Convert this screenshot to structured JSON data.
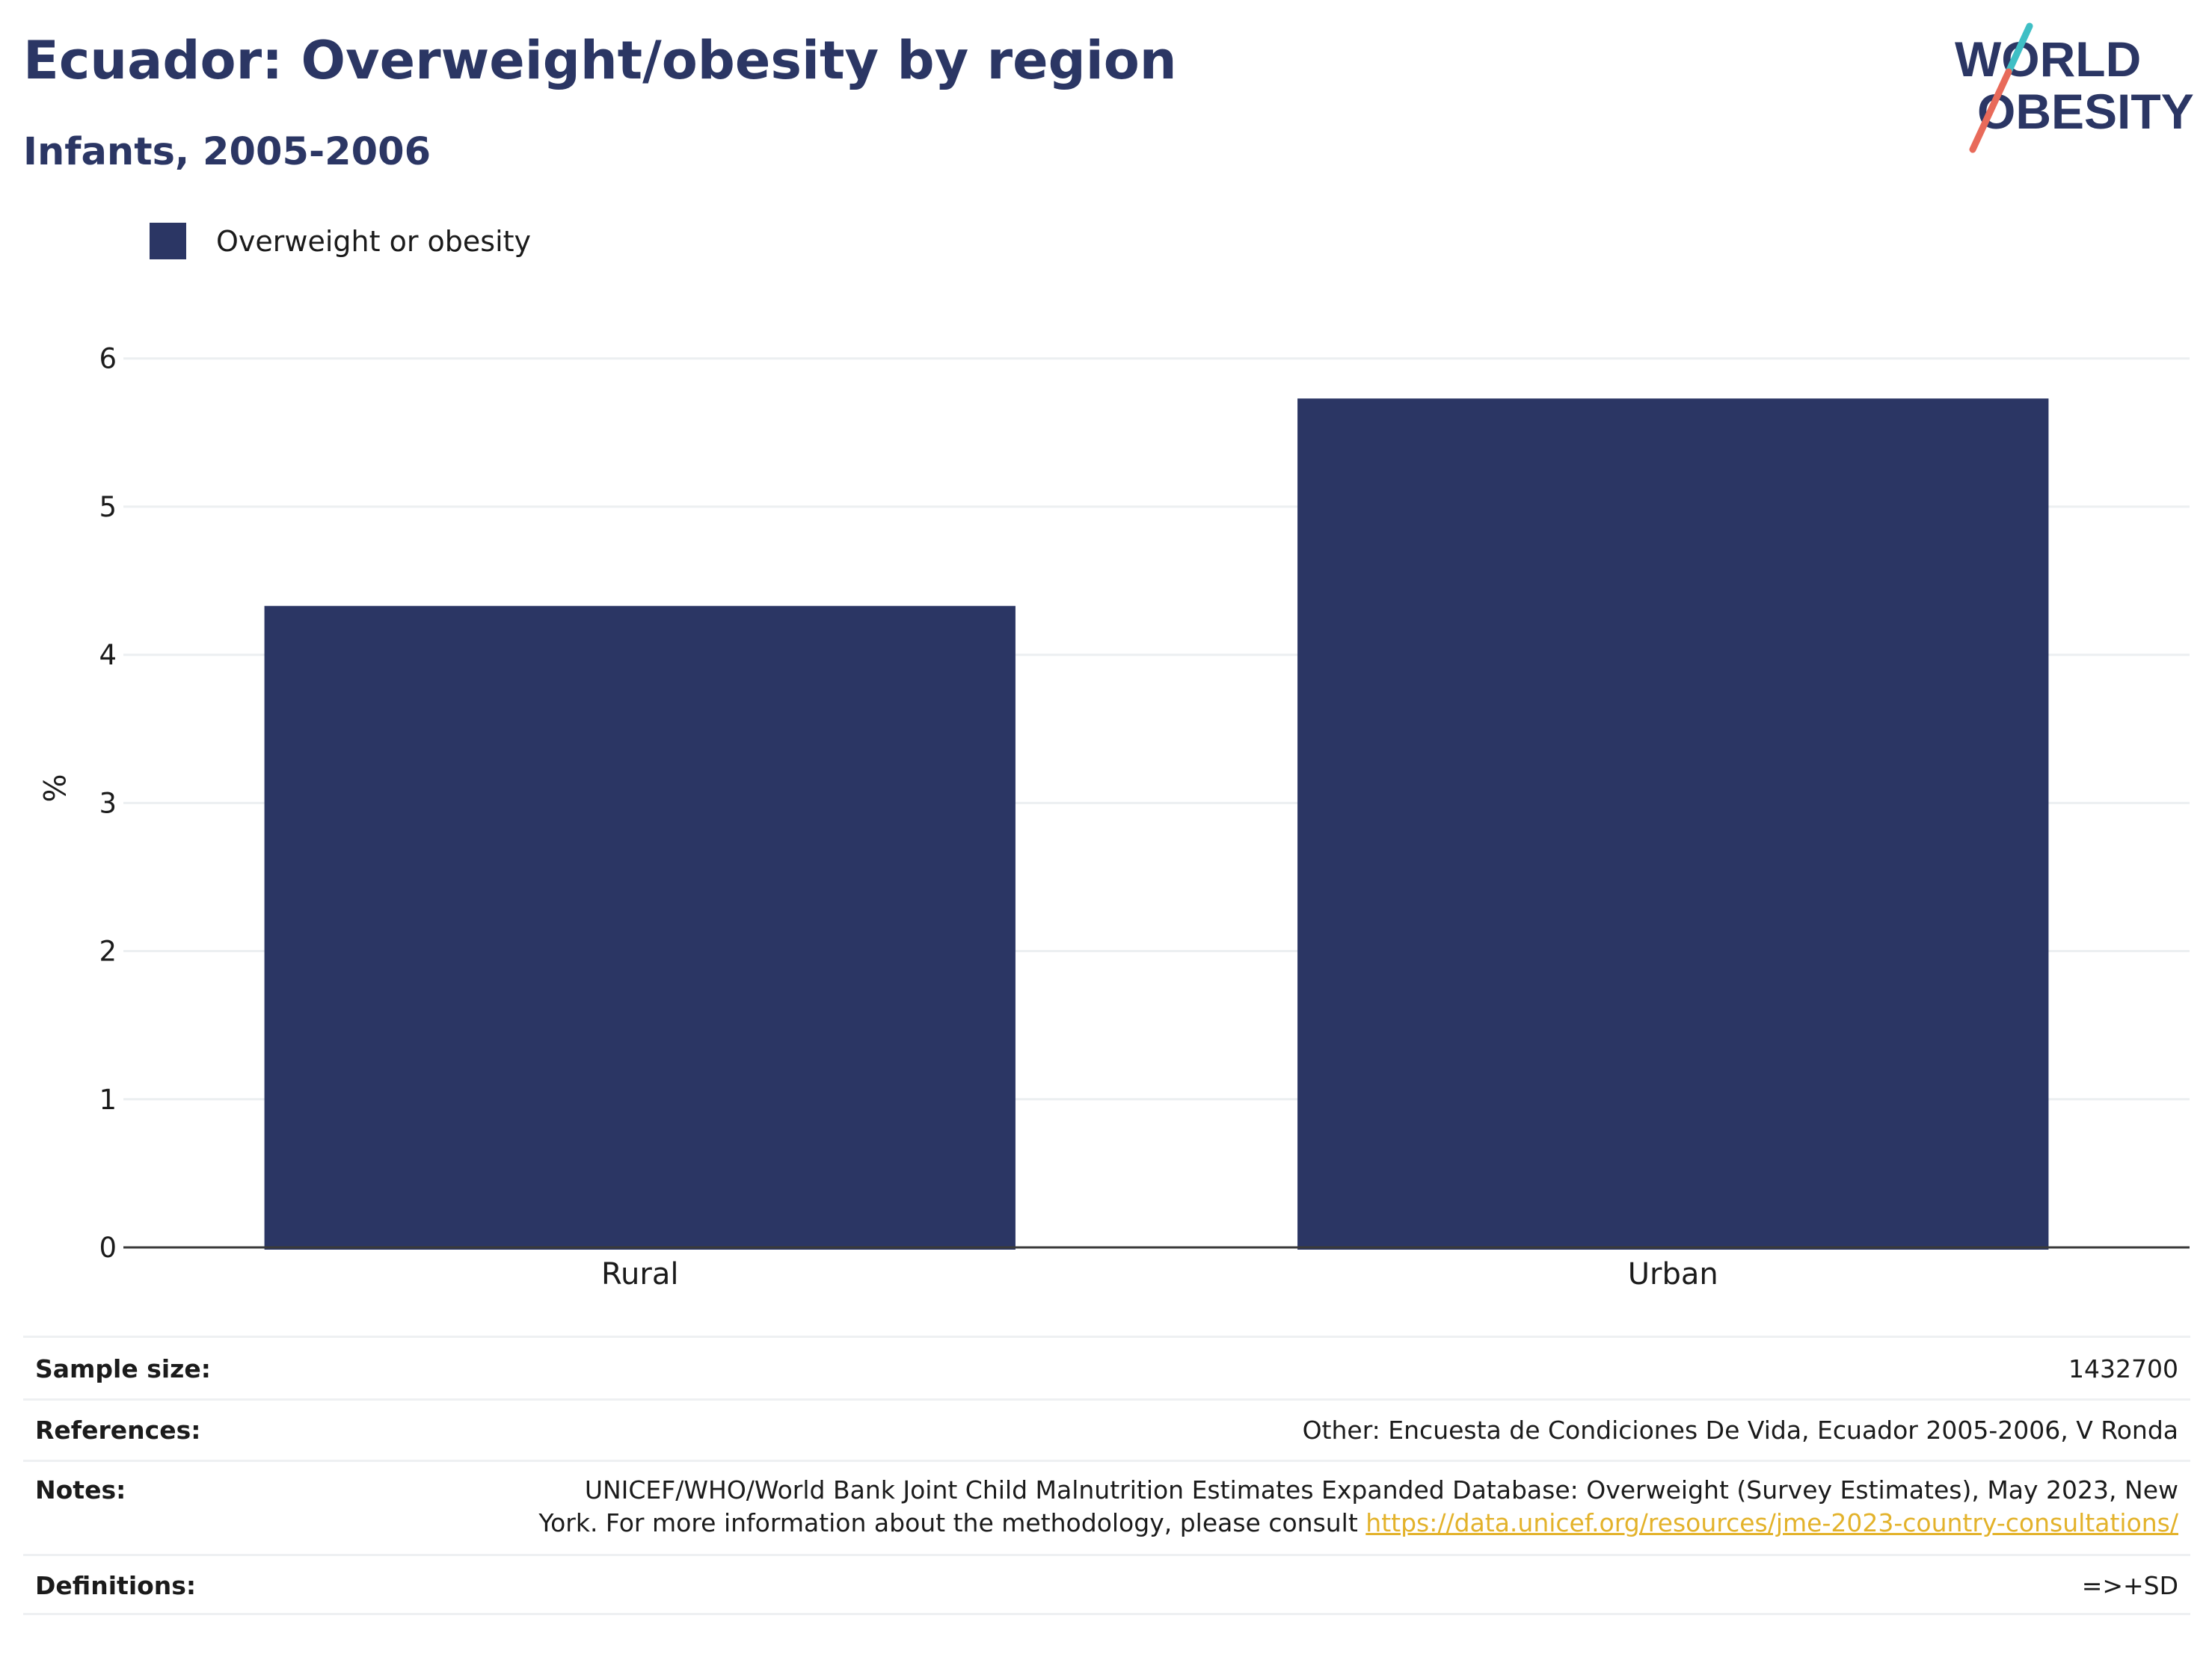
{
  "header": {
    "title": "Ecuador: Overweight/obesity by region",
    "subtitle": "Infants, 2005-2006"
  },
  "logo": {
    "line1": "WORLD",
    "line2": "OBESITY",
    "colors": {
      "navy": "#2b3664",
      "teal": "#3fbfc5",
      "coral": "#e86a5a"
    }
  },
  "legend": {
    "label": "Overweight or obesity",
    "color": "#2b3664"
  },
  "chart_data": {
    "type": "bar",
    "categories": [
      "Rural",
      "Urban"
    ],
    "series": [
      {
        "name": "Overweight or obesity",
        "values": [
          4.33,
          5.73
        ],
        "color": "#2b3664"
      }
    ],
    "ylabel": "%",
    "xlabel": "",
    "ylim": [
      0,
      6.2
    ],
    "yticks": [
      0,
      1,
      2,
      3,
      4,
      5,
      6
    ],
    "grid": true
  },
  "info": {
    "sample_size": {
      "label": "Sample size:",
      "value": "1432700"
    },
    "references": {
      "label": "References:",
      "value": "Other: Encuesta de Condiciones De Vida, Ecuador 2005-2006, V Ronda"
    },
    "notes": {
      "label": "Notes:",
      "line1": "UNICEF/WHO/World Bank Joint Child Malnutrition Estimates Expanded Database: Overweight (Survey Estimates), May 2023, New",
      "line2": "York. For more information about the methodology, please consult",
      "link": "https://data.unicef.org/resources/jme-2023-country-consultations/"
    },
    "definitions": {
      "label": "Definitions:",
      "value": "=>+SD"
    }
  }
}
